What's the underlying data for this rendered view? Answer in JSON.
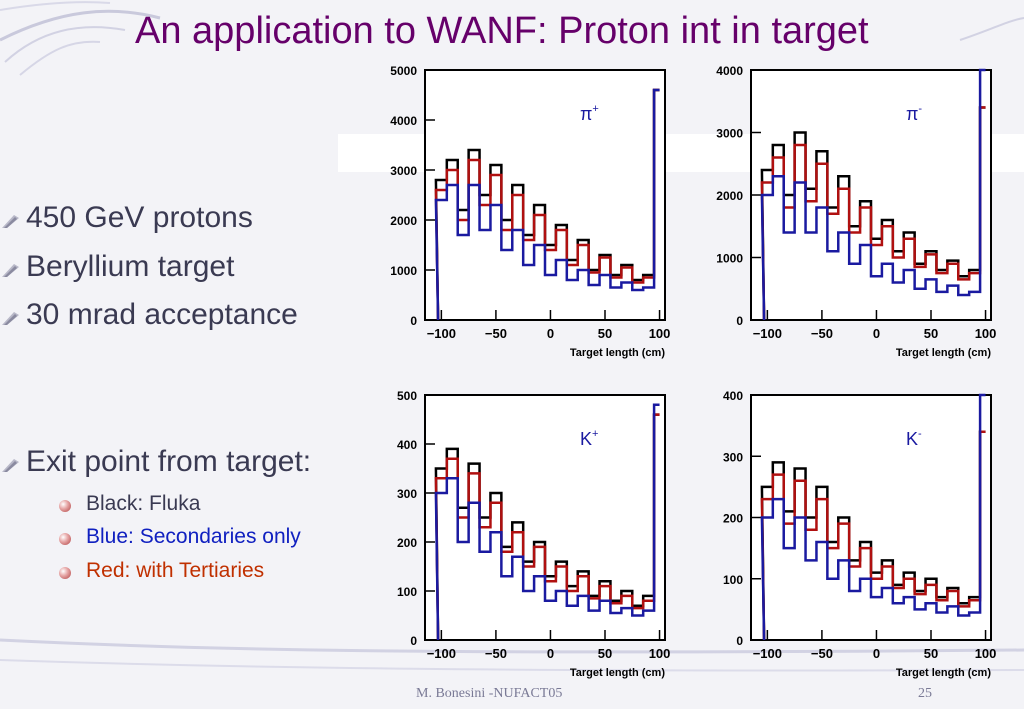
{
  "slide": {
    "title": "An application to WANF: Proton int in target",
    "bullets": [
      {
        "text": "450 GeV protons"
      },
      {
        "text": "Beryllium target"
      },
      {
        "text": "30 mrad acceptance"
      },
      {
        "text": "Exit point from target:"
      }
    ],
    "sub_bullets": [
      {
        "text": "Black: Fluka",
        "color": "#3a3a52"
      },
      {
        "text": "Blue: Secondaries only",
        "color": "#1020c0"
      },
      {
        "text": "Red: with Tertiaries",
        "color": "#c03000"
      }
    ],
    "footer": {
      "author": "M. Bonesini -NUFACT05",
      "page": "25"
    }
  },
  "colors": {
    "fluka": "#000000",
    "secondaries": "#1a1aa0",
    "tertiaries": "#b01010",
    "title": "#66006a"
  },
  "chart_data": [
    {
      "type": "line",
      "label": "π+",
      "label_main": "π",
      "label_sup": "+",
      "xlabel": "Target length (cm)",
      "xlim": [
        -115,
        105
      ],
      "ylim": [
        0,
        5000
      ],
      "x_ticks": [
        "−100",
        "−50",
        "0",
        "50",
        "100"
      ],
      "y_ticks": [
        "0",
        "1000",
        "2000",
        "3000",
        "4000",
        "5000"
      ],
      "x": [
        -100,
        -90,
        -80,
        -70,
        -60,
        -50,
        -40,
        -30,
        -20,
        -10,
        0,
        10,
        20,
        30,
        40,
        50,
        60,
        70,
        80,
        90,
        100
      ],
      "series": [
        {
          "values": [
            2800,
            3200,
            2200,
            3400,
            2500,
            3100,
            2000,
            2700,
            1700,
            2300,
            1500,
            1900,
            1200,
            1600,
            1000,
            1300,
            900,
            1100,
            800,
            900,
            4600
          ]
        },
        {
          "values": [
            2600,
            3000,
            2000,
            3200,
            2300,
            2900,
            1800,
            2500,
            1600,
            2100,
            1400,
            1800,
            1100,
            1500,
            950,
            1250,
            850,
            1050,
            750,
            850,
            4600
          ]
        },
        {
          "values": [
            2400,
            2700,
            1700,
            2700,
            1800,
            2300,
            1400,
            1800,
            1100,
            1500,
            900,
            1200,
            800,
            1000,
            700,
            900,
            650,
            750,
            600,
            650,
            4600
          ]
        }
      ]
    },
    {
      "type": "line",
      "label": "π-",
      "label_main": "π",
      "label_sup": "-",
      "xlabel": "Target length (cm)",
      "xlim": [
        -115,
        105
      ],
      "ylim": [
        0,
        4000
      ],
      "x_ticks": [
        "−100",
        "−50",
        "0",
        "50",
        "100"
      ],
      "y_ticks": [
        "0",
        "1000",
        "2000",
        "3000",
        "4000"
      ],
      "x": [
        -100,
        -90,
        -80,
        -70,
        -60,
        -50,
        -40,
        -30,
        -20,
        -10,
        0,
        10,
        20,
        30,
        40,
        50,
        60,
        70,
        80,
        90,
        100
      ],
      "series": [
        {
          "values": [
            2400,
            2800,
            2000,
            3000,
            2100,
            2700,
            1800,
            2300,
            1500,
            1900,
            1300,
            1600,
            1100,
            1400,
            900,
            1100,
            800,
            950,
            700,
            800,
            3400
          ]
        },
        {
          "values": [
            2200,
            2600,
            1800,
            2800,
            1900,
            2500,
            1700,
            2100,
            1400,
            1800,
            1200,
            1500,
            1000,
            1300,
            850,
            1050,
            750,
            900,
            650,
            750,
            3400
          ]
        },
        {
          "values": [
            2000,
            2300,
            1400,
            2200,
            1400,
            1800,
            1100,
            1400,
            900,
            1200,
            700,
            900,
            600,
            800,
            500,
            650,
            450,
            550,
            400,
            450,
            4000
          ]
        }
      ]
    },
    {
      "type": "line",
      "label": "K+",
      "label_main": "K",
      "label_sup": "+",
      "xlabel": "Target length (cm)",
      "xlim": [
        -115,
        105
      ],
      "ylim": [
        0,
        500
      ],
      "x_ticks": [
        "−100",
        "−50",
        "0",
        "50",
        "100"
      ],
      "y_ticks": [
        "0",
        "100",
        "200",
        "300",
        "400",
        "500"
      ],
      "x": [
        -100,
        -90,
        -80,
        -70,
        -60,
        -50,
        -40,
        -30,
        -20,
        -10,
        0,
        10,
        20,
        30,
        40,
        50,
        60,
        70,
        80,
        90,
        100
      ],
      "series": [
        {
          "values": [
            350,
            390,
            270,
            360,
            250,
            300,
            190,
            240,
            160,
            200,
            130,
            160,
            110,
            140,
            90,
            120,
            80,
            100,
            70,
            90,
            460
          ]
        },
        {
          "values": [
            330,
            370,
            250,
            340,
            230,
            280,
            180,
            220,
            150,
            190,
            120,
            150,
            100,
            130,
            85,
            110,
            75,
            90,
            65,
            80,
            460
          ]
        },
        {
          "values": [
            300,
            330,
            200,
            280,
            180,
            220,
            130,
            170,
            100,
            130,
            80,
            100,
            70,
            90,
            60,
            80,
            55,
            65,
            50,
            60,
            480
          ]
        }
      ]
    },
    {
      "type": "line",
      "label": "K-",
      "label_main": "K",
      "label_sup": "-",
      "xlabel": "Target length (cm)",
      "xlim": [
        -115,
        105
      ],
      "ylim": [
        0,
        400
      ],
      "x_ticks": [
        "−100",
        "−50",
        "0",
        "50",
        "100"
      ],
      "y_ticks": [
        "0",
        "100",
        "200",
        "300",
        "400"
      ],
      "x": [
        -100,
        -90,
        -80,
        -70,
        -60,
        -50,
        -40,
        -30,
        -20,
        -10,
        0,
        10,
        20,
        30,
        40,
        50,
        60,
        70,
        80,
        90,
        100
      ],
      "series": [
        {
          "values": [
            250,
            290,
            210,
            280,
            200,
            250,
            160,
            200,
            130,
            160,
            110,
            130,
            90,
            110,
            80,
            100,
            70,
            85,
            60,
            70,
            340
          ]
        },
        {
          "values": [
            230,
            270,
            190,
            260,
            180,
            230,
            150,
            190,
            120,
            150,
            100,
            120,
            85,
            100,
            75,
            90,
            65,
            80,
            55,
            65,
            340
          ]
        },
        {
          "values": [
            200,
            230,
            150,
            200,
            130,
            160,
            100,
            130,
            80,
            100,
            70,
            85,
            60,
            70,
            50,
            60,
            45,
            55,
            40,
            45,
            400
          ]
        }
      ]
    }
  ]
}
